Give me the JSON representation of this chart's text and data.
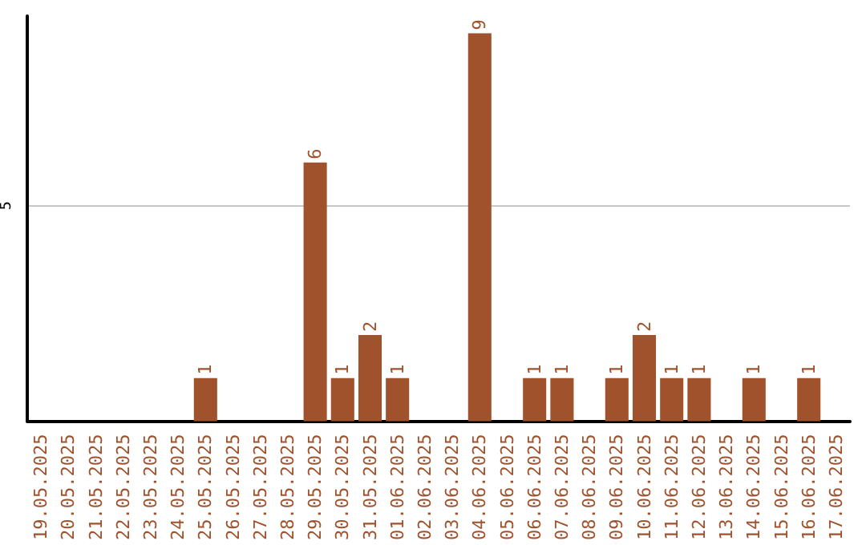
{
  "chart_data": {
    "type": "bar",
    "categories": [
      "19.05.2025",
      "20.05.2025",
      "21.05.2025",
      "22.05.2025",
      "23.05.2025",
      "24.05.2025",
      "25.05.2025",
      "26.05.2025",
      "27.05.2025",
      "28.05.2025",
      "29.05.2025",
      "30.05.2025",
      "31.05.2025",
      "01.06.2025",
      "02.06.2025",
      "03.06.2025",
      "04.06.2025",
      "05.06.2025",
      "06.06.2025",
      "07.06.2025",
      "08.06.2025",
      "09.06.2025",
      "10.06.2025",
      "11.06.2025",
      "12.06.2025",
      "13.06.2025",
      "14.06.2025",
      "15.06.2025",
      "16.06.2025",
      "17.06.2025"
    ],
    "values": [
      0,
      0,
      0,
      0,
      0,
      0,
      1,
      0,
      0,
      0,
      6,
      1,
      2,
      1,
      0,
      0,
      9,
      0,
      1,
      1,
      0,
      1,
      2,
      1,
      1,
      0,
      1,
      0,
      1,
      0
    ],
    "value_labels": [
      null,
      null,
      null,
      null,
      null,
      null,
      "1",
      null,
      null,
      null,
      "6",
      "1",
      "2",
      "1",
      null,
      null,
      "9",
      null,
      "1",
      "1",
      null,
      "1",
      "2",
      "1",
      "1",
      null,
      "1",
      null,
      "1",
      null
    ],
    "color": "#a0522d",
    "ylim": [
      0,
      9.4
    ],
    "yticks": [
      5
    ],
    "grid": "y"
  }
}
